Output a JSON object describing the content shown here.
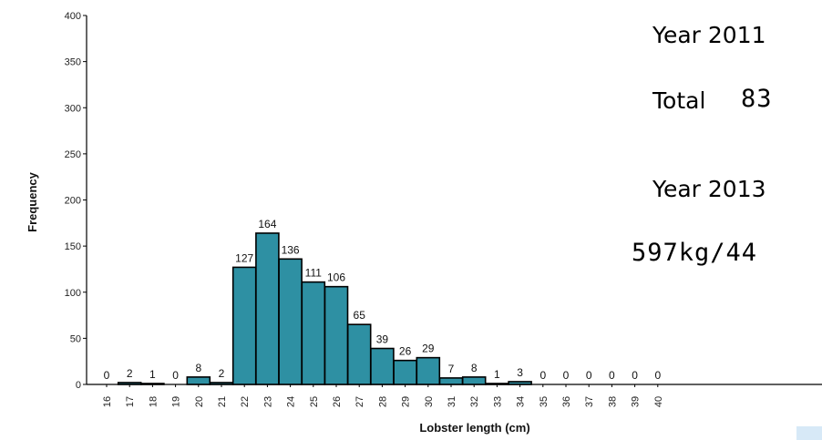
{
  "chart_data": {
    "type": "bar",
    "categories": [
      "16",
      "17",
      "18",
      "19",
      "20",
      "21",
      "22",
      "23",
      "24",
      "25",
      "26",
      "27",
      "28",
      "29",
      "30",
      "31",
      "32",
      "33",
      "34",
      "35",
      "36",
      "37",
      "38",
      "39",
      "40"
    ],
    "values": [
      0,
      2,
      1,
      0,
      8,
      2,
      127,
      164,
      136,
      111,
      106,
      65,
      39,
      26,
      29,
      7,
      8,
      1,
      3,
      0,
      0,
      0,
      0,
      0,
      0
    ],
    "data_labels": [
      "0",
      "2",
      "1",
      "0",
      "8",
      "2",
      "127",
      "164",
      "136",
      "111",
      "106",
      "65",
      "39",
      "26",
      "29",
      "7",
      "8",
      "1",
      "3",
      "0",
      "0",
      "0",
      "0",
      "0",
      "0"
    ],
    "xlabel": "Lobster length  (cm)",
    "ylabel": "Frequency",
    "ylim": [
      0,
      400
    ],
    "yticks": [
      "0",
      "50",
      "100",
      "150",
      "200",
      "250",
      "300",
      "350",
      "400"
    ],
    "grid": false,
    "bar_color": "#2e90a3"
  },
  "annotations": {
    "year_2011": "Year 2011",
    "total_label": "Total",
    "total_value": "83",
    "year_2013": "Year 2013",
    "rate": "597kg/44"
  },
  "colors": {
    "bar": "#2e90a3",
    "bar_edge": "#000000",
    "accent_rect": "#d7e9f7"
  }
}
